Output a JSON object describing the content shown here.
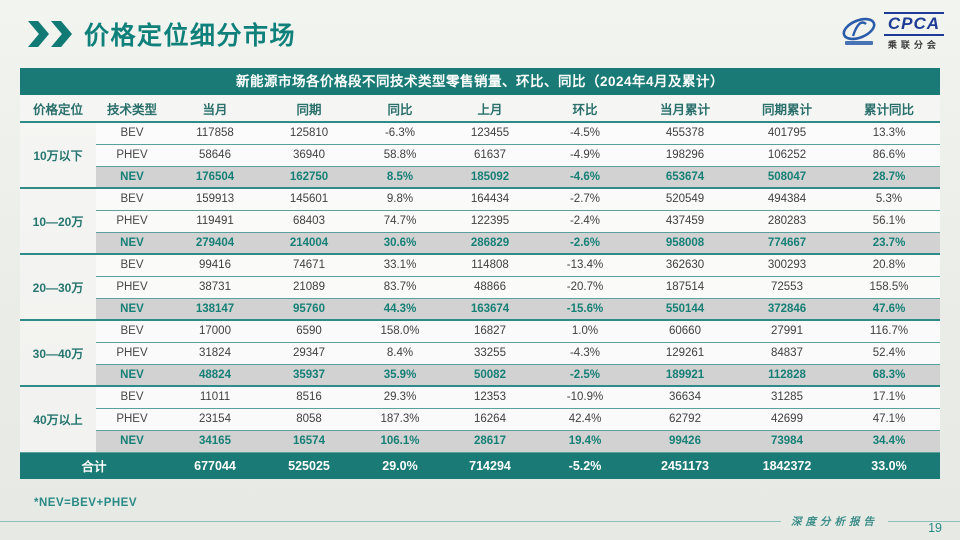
{
  "page": {
    "title": "价格定位细分市场",
    "footnote": "*NEV=BEV+PHEV",
    "footer_label": "深度分析报告",
    "page_number": "19"
  },
  "logo": {
    "name": "CPCA",
    "subtitle": "乘联分会"
  },
  "colors": {
    "accent_teal": "#1a7a76",
    "nev_row_bg": "#d2d2d2",
    "logo_blue": "#1e3c96",
    "page_bg": "#eaece7"
  },
  "table": {
    "title": "新能源市场各价格段不同技术类型零售销量、环比、同比（2024年4月及累计）",
    "columns": [
      "价格定位",
      "技术类型",
      "当月",
      "同期",
      "同比",
      "上月",
      "环比",
      "当月累计",
      "同期累计",
      "累计同比"
    ],
    "groups": [
      {
        "segment": "10万以下",
        "rows": [
          {
            "tech": "BEV",
            "values": [
              "117858",
              "125810",
              "-6.3%",
              "123455",
              "-4.5%",
              "455378",
              "401795",
              "13.3%"
            ]
          },
          {
            "tech": "PHEV",
            "values": [
              "58646",
              "36940",
              "58.8%",
              "61637",
              "-4.9%",
              "198296",
              "106252",
              "86.6%"
            ]
          },
          {
            "tech": "NEV",
            "values": [
              "176504",
              "162750",
              "8.5%",
              "185092",
              "-4.6%",
              "653674",
              "508047",
              "28.7%"
            ]
          }
        ]
      },
      {
        "segment": "10—20万",
        "rows": [
          {
            "tech": "BEV",
            "values": [
              "159913",
              "145601",
              "9.8%",
              "164434",
              "-2.7%",
              "520549",
              "494384",
              "5.3%"
            ]
          },
          {
            "tech": "PHEV",
            "values": [
              "119491",
              "68403",
              "74.7%",
              "122395",
              "-2.4%",
              "437459",
              "280283",
              "56.1%"
            ]
          },
          {
            "tech": "NEV",
            "values": [
              "279404",
              "214004",
              "30.6%",
              "286829",
              "-2.6%",
              "958008",
              "774667",
              "23.7%"
            ]
          }
        ]
      },
      {
        "segment": "20—30万",
        "rows": [
          {
            "tech": "BEV",
            "values": [
              "99416",
              "74671",
              "33.1%",
              "114808",
              "-13.4%",
              "362630",
              "300293",
              "20.8%"
            ]
          },
          {
            "tech": "PHEV",
            "values": [
              "38731",
              "21089",
              "83.7%",
              "48866",
              "-20.7%",
              "187514",
              "72553",
              "158.5%"
            ]
          },
          {
            "tech": "NEV",
            "values": [
              "138147",
              "95760",
              "44.3%",
              "163674",
              "-15.6%",
              "550144",
              "372846",
              "47.6%"
            ]
          }
        ]
      },
      {
        "segment": "30—40万",
        "rows": [
          {
            "tech": "BEV",
            "values": [
              "17000",
              "6590",
              "158.0%",
              "16827",
              "1.0%",
              "60660",
              "27991",
              "116.7%"
            ]
          },
          {
            "tech": "PHEV",
            "values": [
              "31824",
              "29347",
              "8.4%",
              "33255",
              "-4.3%",
              "129261",
              "84837",
              "52.4%"
            ]
          },
          {
            "tech": "NEV",
            "values": [
              "48824",
              "35937",
              "35.9%",
              "50082",
              "-2.5%",
              "189921",
              "112828",
              "68.3%"
            ]
          }
        ]
      },
      {
        "segment": "40万以上",
        "rows": [
          {
            "tech": "BEV",
            "values": [
              "11011",
              "8516",
              "29.3%",
              "12353",
              "-10.9%",
              "36634",
              "31285",
              "17.1%"
            ]
          },
          {
            "tech": "PHEV",
            "values": [
              "23154",
              "8058",
              "187.3%",
              "16264",
              "42.4%",
              "62792",
              "42699",
              "47.1%"
            ]
          },
          {
            "tech": "NEV",
            "values": [
              "34165",
              "16574",
              "106.1%",
              "28617",
              "19.4%",
              "99426",
              "73984",
              "34.4%"
            ]
          }
        ]
      }
    ],
    "total": {
      "label": "合计",
      "values": [
        "677044",
        "525025",
        "29.0%",
        "714294",
        "-5.2%",
        "2451173",
        "1842372",
        "33.0%"
      ]
    }
  }
}
